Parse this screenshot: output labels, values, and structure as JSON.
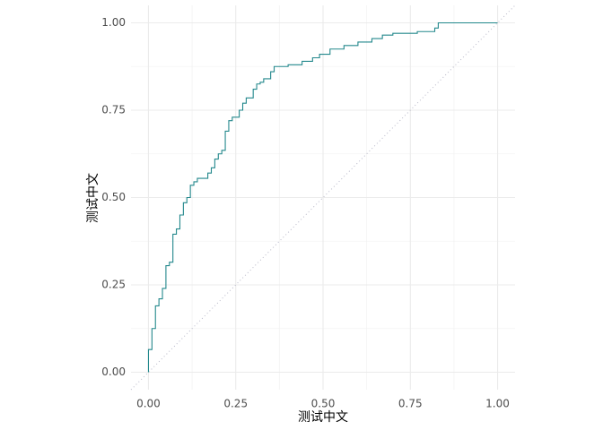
{
  "chart_data": {
    "type": "line",
    "xlabel": "测试中文",
    "ylabel": "测试中文",
    "x": [
      0,
      0,
      0.01,
      0.01,
      0.02,
      0.02,
      0.03,
      0.03,
      0.04,
      0.04,
      0.05,
      0.05,
      0.06,
      0.06,
      0.07,
      0.07,
      0.08,
      0.08,
      0.09,
      0.09,
      0.1,
      0.1,
      0.11,
      0.11,
      0.12,
      0.12,
      0.13,
      0.13,
      0.14,
      0.14,
      0.17,
      0.17,
      0.18,
      0.18,
      0.19,
      0.19,
      0.2,
      0.2,
      0.21,
      0.21,
      0.22,
      0.22,
      0.23,
      0.23,
      0.24,
      0.24,
      0.26,
      0.26,
      0.27,
      0.27,
      0.28,
      0.28,
      0.3,
      0.3,
      0.31,
      0.31,
      0.32,
      0.32,
      0.33,
      0.33,
      0.35,
      0.35,
      0.36,
      0.36,
      0.4,
      0.4,
      0.44,
      0.44,
      0.47,
      0.47,
      0.49,
      0.49,
      0.52,
      0.52,
      0.56,
      0.56,
      0.6,
      0.6,
      0.64,
      0.64,
      0.67,
      0.67,
      0.7,
      0.7,
      0.77,
      0.77,
      0.82,
      0.82,
      0.83,
      0.83,
      1
    ],
    "values": [
      0,
      0.065,
      0.065,
      0.125,
      0.125,
      0.19,
      0.19,
      0.21,
      0.21,
      0.24,
      0.24,
      0.305,
      0.305,
      0.315,
      0.315,
      0.395,
      0.395,
      0.41,
      0.41,
      0.45,
      0.45,
      0.485,
      0.485,
      0.5,
      0.5,
      0.535,
      0.535,
      0.545,
      0.545,
      0.555,
      0.555,
      0.57,
      0.57,
      0.585,
      0.585,
      0.61,
      0.61,
      0.625,
      0.625,
      0.635,
      0.635,
      0.69,
      0.69,
      0.72,
      0.72,
      0.73,
      0.73,
      0.75,
      0.75,
      0.77,
      0.77,
      0.785,
      0.785,
      0.81,
      0.81,
      0.825,
      0.825,
      0.83,
      0.83,
      0.84,
      0.84,
      0.86,
      0.86,
      0.875,
      0.875,
      0.88,
      0.88,
      0.89,
      0.89,
      0.9,
      0.9,
      0.91,
      0.91,
      0.925,
      0.925,
      0.935,
      0.935,
      0.945,
      0.945,
      0.955,
      0.955,
      0.965,
      0.965,
      0.97,
      0.97,
      0.975,
      0.975,
      0.985,
      0.985,
      1,
      1
    ],
    "color": "#23888c",
    "xlim": [
      -0.05,
      1.05
    ],
    "ylim": [
      -0.05,
      1.05
    ],
    "xticks": [
      {
        "value": 0,
        "label": "0.00"
      },
      {
        "value": 0.25,
        "label": "0.25"
      },
      {
        "value": 0.5,
        "label": "0.50"
      },
      {
        "value": 0.75,
        "label": "0.75"
      },
      {
        "value": 1,
        "label": "1.00"
      }
    ],
    "yticks": [
      {
        "value": 0,
        "label": "0.00"
      },
      {
        "value": 0.25,
        "label": "0.25"
      },
      {
        "value": 0.5,
        "label": "0.50"
      },
      {
        "value": 0.75,
        "label": "0.75"
      },
      {
        "value": 1,
        "label": "1.00"
      }
    ],
    "xminor": [
      0.125,
      0.375,
      0.625,
      0.875
    ],
    "yminor": [
      0.125,
      0.375,
      0.625,
      0.875
    ],
    "grid": true,
    "reference_line": true
  }
}
